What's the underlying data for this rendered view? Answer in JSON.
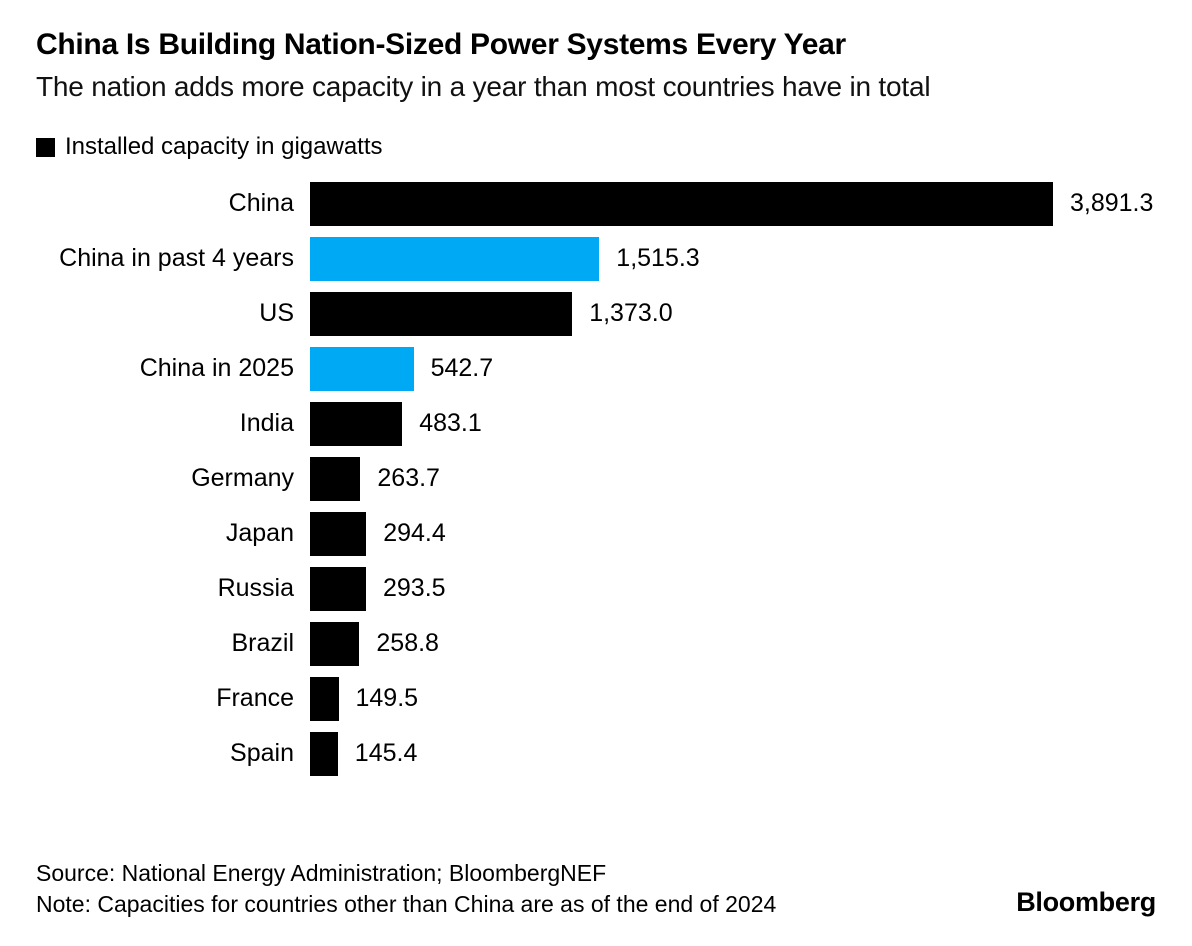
{
  "chart_data": {
    "type": "bar",
    "orientation": "horizontal",
    "title": "China Is Building Nation-Sized Power Systems Every Year",
    "subtitle": "The nation adds more capacity in a year than most countries have in total",
    "legend_label": "Installed capacity in gigawatts",
    "xlim": [
      0,
      3891.3
    ],
    "grid": false,
    "legend_position": "top-left",
    "colors": {
      "default_bar": "#000000",
      "highlight_bar": "#00A9F4"
    },
    "categories": [
      "China",
      "China in past 4 years",
      "US",
      "China in 2025",
      "India",
      "Germany",
      "Japan",
      "Russia",
      "Brazil",
      "France",
      "Spain"
    ],
    "values": [
      3891.3,
      1515.3,
      1373.0,
      542.7,
      483.1,
      263.7,
      294.4,
      293.5,
      258.8,
      149.5,
      145.4
    ],
    "bars": [
      {
        "label": "China",
        "value": 3891.3,
        "value_label": "3,891.3",
        "color": "#000000"
      },
      {
        "label": "China in past 4 years",
        "value": 1515.3,
        "value_label": "1,515.3",
        "color": "#00A9F4"
      },
      {
        "label": "US",
        "value": 1373.0,
        "value_label": "1,373.0",
        "color": "#000000"
      },
      {
        "label": "China in 2025",
        "value": 542.7,
        "value_label": "542.7",
        "color": "#00A9F4"
      },
      {
        "label": "India",
        "value": 483.1,
        "value_label": "483.1",
        "color": "#000000"
      },
      {
        "label": "Germany",
        "value": 263.7,
        "value_label": "263.7",
        "color": "#000000"
      },
      {
        "label": "Japan",
        "value": 294.4,
        "value_label": "294.4",
        "color": "#000000"
      },
      {
        "label": "Russia",
        "value": 293.5,
        "value_label": "293.5",
        "color": "#000000"
      },
      {
        "label": "Brazil",
        "value": 258.8,
        "value_label": "258.8",
        "color": "#000000"
      },
      {
        "label": "France",
        "value": 149.5,
        "value_label": "149.5",
        "color": "#000000"
      },
      {
        "label": "Spain",
        "value": 145.4,
        "value_label": "145.4",
        "color": "#000000"
      }
    ]
  },
  "footer": {
    "source": "Source: National Energy Administration; BloombergNEF",
    "note": "Note: Capacities for countries other than China are as of the end of 2024",
    "logo": "Bloomberg"
  }
}
